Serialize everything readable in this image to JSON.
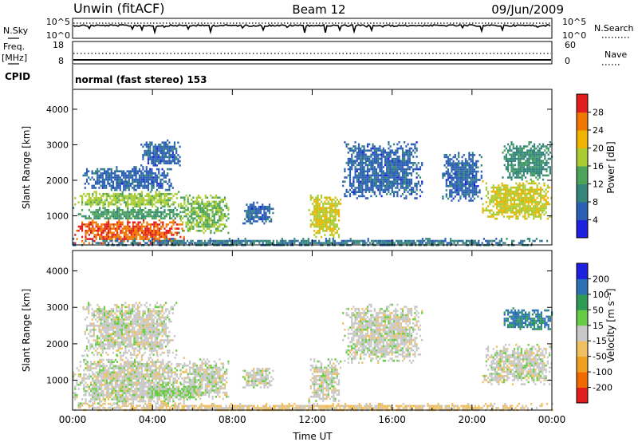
{
  "header": {
    "station": "Unwin (fitACF)",
    "beam": "Beam 12",
    "date": "09/Jun/2009"
  },
  "nsky_panel": {
    "left_label": "N.Sky",
    "right_label": "N.Search",
    "left_ticks": [
      "10^5",
      "10^0"
    ],
    "right_ticks": [
      "10^5",
      "10^0"
    ]
  },
  "freq_panel": {
    "left_label_line1": "Freq.",
    "left_label_line2": "[MHz]",
    "right_label": "Nave",
    "left_ticks": [
      "18",
      "8"
    ],
    "right_ticks": [
      "60",
      "0"
    ]
  },
  "cpid_panel": {
    "label": "CPID",
    "text": "normal (fast stereo) 153"
  },
  "chart_data": [
    {
      "type": "heatmap",
      "title": "",
      "xlabel": "Time UT",
      "ylabel": "Slant Range [km]",
      "x_ticks": [
        "00:00",
        "04:00",
        "08:00",
        "12:00",
        "16:00",
        "20:00",
        "00:00"
      ],
      "xlim_hours": [
        0,
        24
      ],
      "y_ticks": [
        1000,
        2000,
        3000,
        4000
      ],
      "ylim": [
        180,
        4560
      ],
      "colorbar": {
        "label": "Power [dB]",
        "ticks": [
          "4",
          "8",
          "12",
          "16",
          "20",
          "24",
          "28"
        ],
        "range": [
          0,
          30
        ],
        "colors": [
          "#1f1fe0",
          "#2b5fb4",
          "#34857a",
          "#4ca35a",
          "#aacc33",
          "#f0b400",
          "#f07800",
          "#e01e1e"
        ]
      },
      "echo_regions": [
        {
          "t0": 0.0,
          "t1": 5.6,
          "r0": 250,
          "r1": 900,
          "level": 26
        },
        {
          "t0": 0.0,
          "t1": 5.6,
          "r0": 900,
          "r1": 1250,
          "level": 12
        },
        {
          "t0": 0.0,
          "t1": 5.4,
          "r0": 1250,
          "r1": 1700,
          "level": 16
        },
        {
          "t0": 0.5,
          "t1": 5.0,
          "r0": 1700,
          "r1": 2400,
          "level": 6
        },
        {
          "t0": 3.4,
          "t1": 5.4,
          "r0": 2400,
          "r1": 3150,
          "level": 6
        },
        {
          "t0": 5.3,
          "t1": 7.8,
          "r0": 500,
          "r1": 1600,
          "level": 15
        },
        {
          "t0": 8.5,
          "t1": 10.0,
          "r0": 800,
          "r1": 1400,
          "level": 6
        },
        {
          "t0": 11.8,
          "t1": 13.4,
          "r0": 400,
          "r1": 1600,
          "level": 18
        },
        {
          "t0": 13.5,
          "t1": 17.5,
          "r0": 1500,
          "r1": 3100,
          "level": 6
        },
        {
          "t0": 18.5,
          "t1": 20.5,
          "r0": 1400,
          "r1": 2800,
          "level": 6
        },
        {
          "t0": 20.5,
          "t1": 24.0,
          "r0": 900,
          "r1": 2000,
          "level": 18
        },
        {
          "t0": 21.5,
          "t1": 24.0,
          "r0": 2000,
          "r1": 3100,
          "level": 10
        },
        {
          "t0": 0.0,
          "t1": 24.0,
          "r0": 180,
          "r1": 380,
          "level": 8
        }
      ]
    },
    {
      "type": "heatmap",
      "title": "",
      "xlabel": "Time UT",
      "ylabel": "Slant Range [km]",
      "x_ticks": [
        "00:00",
        "04:00",
        "08:00",
        "12:00",
        "16:00",
        "20:00",
        "00:00"
      ],
      "xlim_hours": [
        0,
        24
      ],
      "y_ticks": [
        1000,
        2000,
        3000,
        4000
      ],
      "ylim": [
        180,
        4560
      ],
      "colorbar": {
        "label": "Velocity [m s⁻¹]",
        "ticks": [
          "-200",
          "-100",
          "-50",
          "-15",
          "15",
          "50",
          "100",
          "200"
        ],
        "range": [
          -250,
          250
        ],
        "colors": [
          "#e01e1e",
          "#f06a00",
          "#f0a020",
          "#f0c060",
          "#c8c8c8",
          "#66cc44",
          "#2f9a55",
          "#2b6fb4",
          "#1f1fe0"
        ]
      },
      "echo_regions": [
        {
          "t0": 0.0,
          "t1": 5.6,
          "r0": 250,
          "r1": 1700,
          "level": 0
        },
        {
          "t0": 0.5,
          "t1": 5.2,
          "r0": 1700,
          "r1": 3150,
          "level": 0
        },
        {
          "t0": 5.3,
          "t1": 7.8,
          "r0": 500,
          "r1": 1600,
          "level": 0
        },
        {
          "t0": 3.5,
          "t1": 6.5,
          "r0": 500,
          "r1": 900,
          "level": 40
        },
        {
          "t0": 8.5,
          "t1": 10.0,
          "r0": 800,
          "r1": 1400,
          "level": 0
        },
        {
          "t0": 11.8,
          "t1": 13.4,
          "r0": 400,
          "r1": 1600,
          "level": 0
        },
        {
          "t0": 13.5,
          "t1": 17.5,
          "r0": 1500,
          "r1": 3100,
          "level": 0
        },
        {
          "t0": 20.5,
          "t1": 24.0,
          "r0": 900,
          "r1": 2000,
          "level": 0
        },
        {
          "t0": 21.5,
          "t1": 24.0,
          "r0": 2400,
          "r1": 3000,
          "level": 150
        },
        {
          "t0": 0.0,
          "t1": 24.0,
          "r0": 180,
          "r1": 380,
          "level": -40
        }
      ]
    }
  ]
}
